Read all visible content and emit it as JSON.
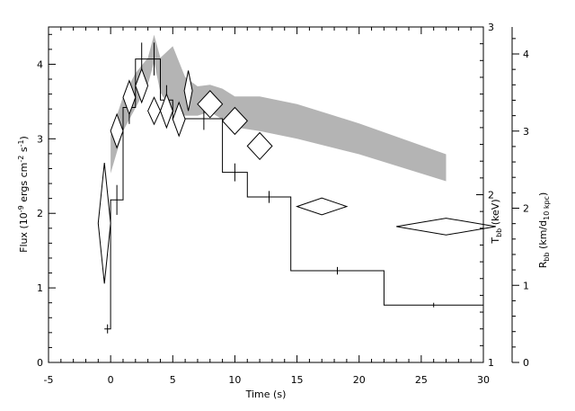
{
  "chart_data": {
    "type": "scatter",
    "xlabel": "Time (s)",
    "xlim": [
      -5,
      30
    ],
    "x_ticks": [
      "-5",
      "0",
      "5",
      "10",
      "15",
      "20",
      "25",
      "30"
    ],
    "y_left": {
      "label": "Flux (10",
      "label_sup1": "-9",
      "label_mid": " ergs cm",
      "label_sup2": "-2",
      "label_mid2": " s",
      "label_sup3": "-1",
      "label_end": ")",
      "lim": [
        0,
        4.5
      ],
      "ticks": [
        "0",
        "1",
        "2",
        "3",
        "4"
      ]
    },
    "y_right_1": {
      "label": "T",
      "label_sub": "bb",
      "label_end": " (keV)",
      "lim": [
        1,
        3
      ],
      "ticks": [
        "1",
        "2",
        "3"
      ]
    },
    "y_right_2": {
      "label": "R",
      "label_sub": "bb",
      "label_mid": " (km/d",
      "label_sub2": "10 kpc",
      "label_end": ")",
      "lim": [
        0,
        4.35
      ],
      "ticks": [
        "0",
        "1",
        "2",
        "3",
        "4"
      ]
    },
    "flux_steps": [
      {
        "x0": -0.5,
        "x1": 0.0,
        "y": 0.45,
        "yerr": 0.06
      },
      {
        "x0": 0.0,
        "x1": 1.0,
        "y": 2.18,
        "yerr": 0.2
      },
      {
        "x0": 1.0,
        "x1": 2.0,
        "y": 3.42,
        "yerr": 0.22
      },
      {
        "x0": 2.0,
        "x1": 3.0,
        "y": 4.07,
        "yerr": 0.22
      },
      {
        "x0": 3.0,
        "x1": 4.0,
        "y": 4.07,
        "yerr": 0.22
      },
      {
        "x0": 4.0,
        "x1": 5.0,
        "y": 3.52,
        "yerr": 0.2
      },
      {
        "x0": 5.0,
        "x1": 6.0,
        "y": 3.27,
        "yerr": 0.2
      },
      {
        "x0": 6.0,
        "x1": 9.0,
        "y": 3.27,
        "yerr": 0.15
      },
      {
        "x0": 9.0,
        "x1": 11.0,
        "y": 2.55,
        "yerr": 0.12
      },
      {
        "x0": 11.0,
        "x1": 14.5,
        "y": 2.22,
        "yerr": 0.08
      },
      {
        "x0": 14.5,
        "x1": 22.0,
        "y": 1.23,
        "yerr": 0.05
      },
      {
        "x0": 22.0,
        "x1": 30.0,
        "y": 0.77,
        "yerr": 0.03
      }
    ],
    "temperature_diamonds": [
      {
        "x": -0.5,
        "y": 1.83,
        "xerr": 0.5,
        "yerr": 0.36
      },
      {
        "x": 0.5,
        "y": 2.38,
        "xerr": 0.5,
        "yerr": 0.1
      },
      {
        "x": 1.5,
        "y": 2.58,
        "xerr": 0.5,
        "yerr": 0.1
      },
      {
        "x": 2.5,
        "y": 2.65,
        "xerr": 0.5,
        "yerr": 0.1
      },
      {
        "x": 3.5,
        "y": 2.5,
        "xerr": 0.5,
        "yerr": 0.08
      },
      {
        "x": 4.5,
        "y": 2.5,
        "xerr": 0.5,
        "yerr": 0.1
      },
      {
        "x": 5.5,
        "y": 2.45,
        "xerr": 0.5,
        "yerr": 0.1
      },
      {
        "x": 6.25,
        "y": 2.62,
        "xerr": 0.3,
        "yerr": 0.12
      },
      {
        "x": 8.0,
        "y": 2.54,
        "xerr": 1.0,
        "yerr": 0.08
      },
      {
        "x": 10.0,
        "y": 2.44,
        "xerr": 1.0,
        "yerr": 0.08
      },
      {
        "x": 12.0,
        "y": 2.29,
        "xerr": 1.0,
        "yerr": 0.08
      },
      {
        "x": 17.0,
        "y": 1.93,
        "xerr": 2.0,
        "yerr": 0.05
      },
      {
        "x": 27.0,
        "y": 1.81,
        "xerr": 4.0,
        "yerr": 0.05
      }
    ],
    "radius_band": {
      "x": [
        0,
        1,
        2,
        3,
        3.5,
        4,
        5,
        6,
        7,
        8,
        9,
        10,
        12,
        15,
        20,
        27
      ],
      "y_low": [
        2.45,
        3.0,
        3.3,
        3.6,
        3.9,
        3.5,
        3.25,
        3.2,
        3.2,
        3.25,
        3.15,
        3.05,
        3.0,
        2.9,
        2.7,
        2.35
      ],
      "y_high": [
        2.95,
        3.45,
        3.75,
        3.95,
        4.25,
        3.95,
        4.1,
        3.7,
        3.58,
        3.6,
        3.55,
        3.45,
        3.45,
        3.35,
        3.1,
        2.7
      ]
    }
  }
}
